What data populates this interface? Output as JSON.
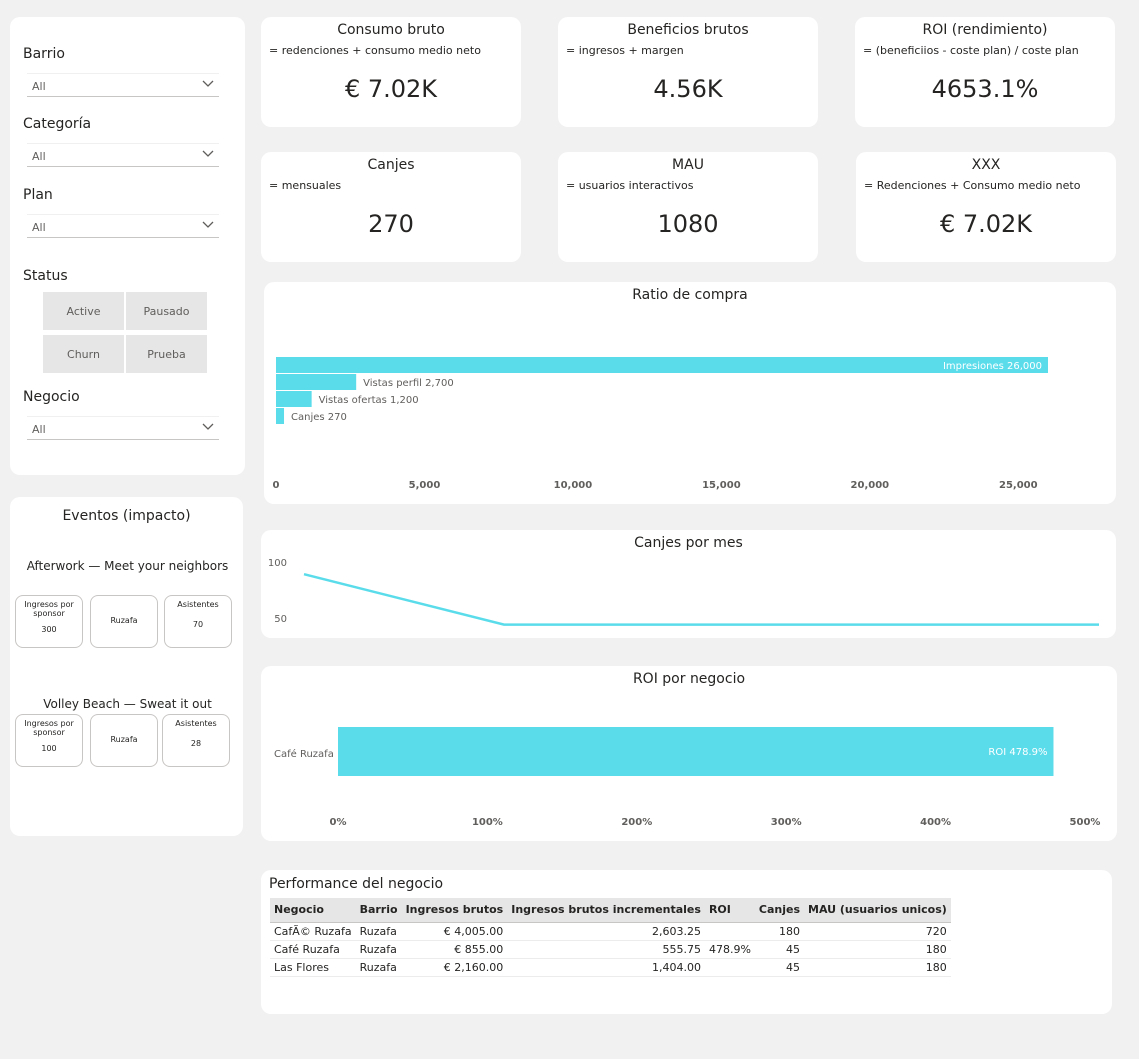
{
  "filters": {
    "barrio": {
      "label": "Barrio",
      "value": "All"
    },
    "categoria": {
      "label": "Categoría",
      "value": "All"
    },
    "plan": {
      "label": "Plan",
      "value": "All"
    },
    "status": {
      "label": "Status",
      "tiles": [
        "Active",
        "Pausado",
        "Churn",
        "Prueba"
      ]
    },
    "negocio": {
      "label": "Negocio",
      "value": "All"
    }
  },
  "kpis": [
    {
      "title": "Consumo bruto",
      "sub": "= redenciones + consumo medio neto",
      "value": "€ 7.02K"
    },
    {
      "title": "Beneficios brutos",
      "sub": "= ingresos + margen",
      "value": "4.56K"
    },
    {
      "title": "ROI (rendimiento)",
      "sub": "= (beneficiios - coste plan) / coste plan",
      "value": "4653.1%"
    },
    {
      "title": "Canjes",
      "sub": "= mensuales",
      "value": "270"
    },
    {
      "title": "MAU",
      "sub": "= usuarios interactivos",
      "value": "1080"
    },
    {
      "title": "XXX",
      "sub": "= Redenciones + Consumo medio neto",
      "value": "€ 7.02K"
    }
  ],
  "events": {
    "title": "Eventos (impacto)",
    "items": [
      {
        "name": "Afterwork — Meet your neighbors",
        "sponsor_label": "Ingresos por sponsor",
        "sponsor_value": "300",
        "barrio": "Ruzafa",
        "asist_label": "Asistentes",
        "asist_value": "70"
      },
      {
        "name": "Volley Beach — Sweat it out",
        "sponsor_label": "Ingresos por sponsor",
        "sponsor_value": "100",
        "barrio": "Ruzafa",
        "asist_label": "Asistentes",
        "asist_value": "28"
      }
    ]
  },
  "chart_data": [
    {
      "type": "bar",
      "title": "Ratio de compra",
      "orientation": "horizontal",
      "categories": [
        "Impresiones",
        "Vistas perfil",
        "Vistas ofertas",
        "Canjes"
      ],
      "values": [
        26000,
        2700,
        1200,
        270
      ],
      "data_labels": [
        "Impresiones 26,000",
        "Vistas perfil 2,700",
        "Vistas ofertas 1,200",
        "Canjes 270"
      ],
      "xlim": [
        0,
        27500
      ],
      "xticks": [
        0,
        5000,
        10000,
        15000,
        20000,
        25000
      ],
      "xtick_labels": [
        "0",
        "5,000",
        "10,000",
        "15,000",
        "20,000",
        "25,000"
      ],
      "color": "#5ADCEB"
    },
    {
      "type": "line",
      "title": "Canjes por mes",
      "values": [
        90,
        45,
        45
      ],
      "ylim": [
        42,
        105
      ],
      "yticks": [
        50,
        100
      ],
      "ytick_labels": [
        "50",
        "100"
      ],
      "color": "#5ADCEB"
    },
    {
      "type": "bar",
      "title": "ROI por negocio",
      "orientation": "horizontal",
      "categories": [
        "Café Ruzafa"
      ],
      "values": [
        478.9
      ],
      "data_labels": [
        "ROI 478.9%"
      ],
      "xlim": [
        0,
        500
      ],
      "xticks": [
        0,
        100,
        200,
        300,
        400,
        500
      ],
      "xtick_labels": [
        "0%",
        "100%",
        "200%",
        "300%",
        "400%",
        "500%"
      ],
      "color": "#5ADCEB"
    }
  ],
  "table": {
    "title": "Performance del negocio",
    "columns": [
      "Negocio",
      "Barrio",
      "Ingresos brutos",
      "Ingresos brutos incrementales",
      "ROI",
      "Canjes",
      "MAU (usuarios unicos)"
    ],
    "rows": [
      [
        "CafÃ© Ruzafa",
        "Ruzafa",
        "€ 4,005.00",
        "2,603.25",
        "",
        "180",
        "720"
      ],
      [
        "Café Ruzafa",
        "Ruzafa",
        "€ 855.00",
        "555.75",
        "478.9%",
        "45",
        "180"
      ],
      [
        "Las Flores",
        "Ruzafa",
        "€ 2,160.00",
        "1,404.00",
        "",
        "45",
        "180"
      ]
    ]
  }
}
